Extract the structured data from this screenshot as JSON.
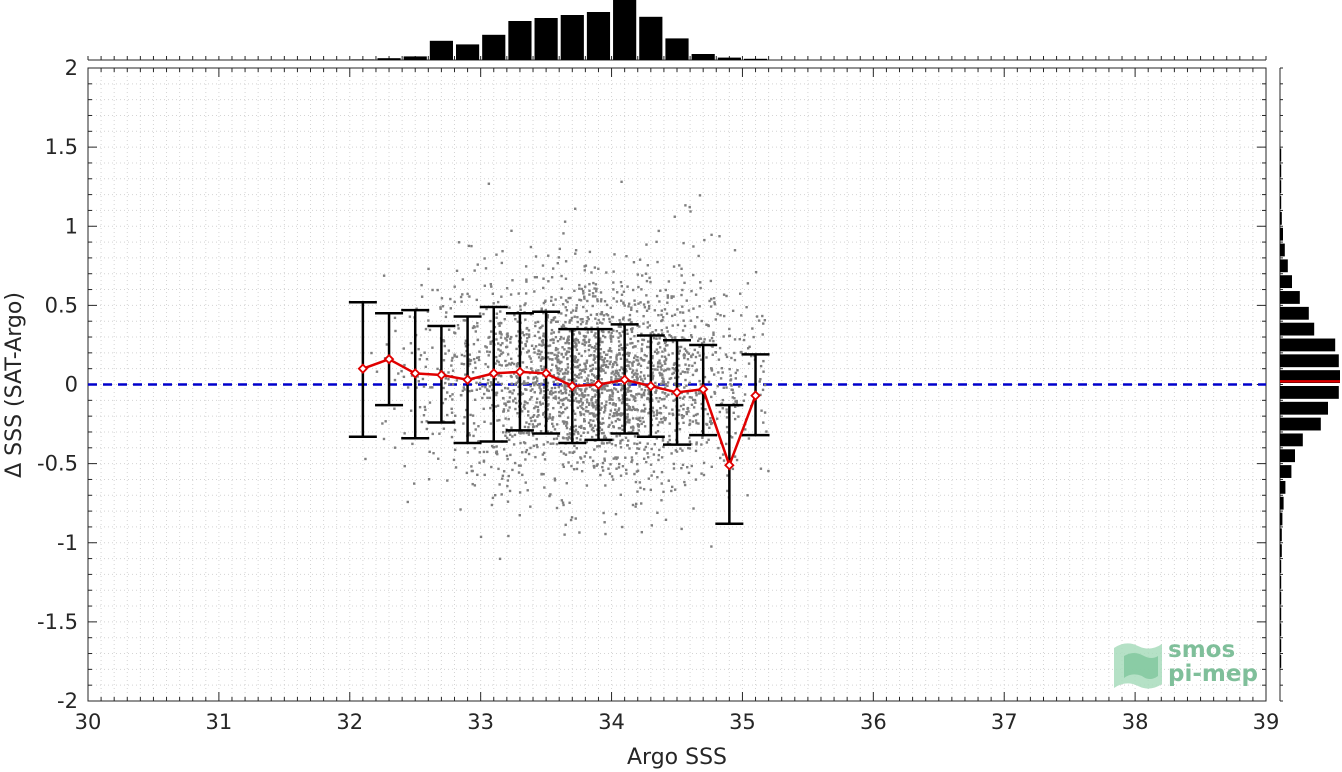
{
  "chart_data": {
    "type": "scatter",
    "title": "",
    "xlabel": "Argo SSS",
    "ylabel": "Δ SSS (SAT-Argo)",
    "xlim": [
      30,
      39
    ],
    "ylim": [
      -2,
      2
    ],
    "xticks": [
      "30",
      "31",
      "32",
      "33",
      "34",
      "35",
      "36",
      "37",
      "38",
      "39"
    ],
    "yticks": [
      "-2",
      "-1.5",
      "-1",
      "-0.5",
      "0",
      "0.5",
      "1",
      "1.5",
      "2"
    ],
    "grid": true,
    "zero_line": {
      "y": 0,
      "color": "#0000cc",
      "style": "dashed"
    },
    "scatter": {
      "color": "#808080",
      "center_x": 33.85,
      "spread_x": 0.62,
      "center_y": 0.02,
      "spread_y": 0.28,
      "xmin": 32.1,
      "xmax": 35.2
    },
    "binned_mean": {
      "color": "#e00000",
      "x": [
        32.1,
        32.3,
        32.5,
        32.7,
        32.9,
        33.1,
        33.3,
        33.5,
        33.7,
        33.9,
        34.1,
        34.3,
        34.5,
        34.7,
        34.9,
        35.1
      ],
      "mean": [
        0.1,
        0.16,
        0.07,
        0.06,
        0.03,
        0.07,
        0.08,
        0.07,
        -0.01,
        0.0,
        0.03,
        -0.01,
        -0.05,
        -0.03,
        -0.51,
        -0.07
      ],
      "upper": [
        0.52,
        0.45,
        0.47,
        0.37,
        0.43,
        0.49,
        0.45,
        0.46,
        0.35,
        0.35,
        0.38,
        0.31,
        0.28,
        0.25,
        -0.13,
        0.19
      ],
      "lower": [
        -0.33,
        -0.13,
        -0.34,
        -0.24,
        -0.37,
        -0.36,
        -0.29,
        -0.31,
        -0.37,
        -0.35,
        -0.31,
        -0.33,
        -0.38,
        -0.32,
        -0.88,
        -0.32
      ]
    },
    "top_histogram": {
      "color": "#000000",
      "bins_x": [
        32.0,
        32.2,
        32.4,
        32.6,
        32.8,
        33.0,
        33.2,
        33.4,
        33.6,
        33.8,
        34.0,
        34.2,
        34.4,
        34.6,
        34.8,
        35.0
      ],
      "heights": [
        0.01,
        0.03,
        0.06,
        0.32,
        0.26,
        0.42,
        0.65,
        0.7,
        0.75,
        0.8,
        1.0,
        0.72,
        0.36,
        0.1,
        0.04,
        0.02
      ]
    },
    "right_histogram": {
      "color": "#000000",
      "median_color": "#e00000",
      "median_y": 0.02,
      "bins_y": [
        1.45,
        1.35,
        1.25,
        1.15,
        1.05,
        0.95,
        0.85,
        0.75,
        0.65,
        0.55,
        0.45,
        0.35,
        0.25,
        0.15,
        0.05,
        -0.05,
        -0.15,
        -0.25,
        -0.35,
        -0.45,
        -0.55,
        -0.65,
        -0.75,
        -0.85,
        -0.95,
        -1.05,
        -1.15,
        -1.25,
        -1.35,
        -1.45,
        -1.55,
        -1.65,
        -1.75
      ],
      "widths": [
        0.02,
        0.02,
        0.02,
        0.02,
        0.03,
        0.05,
        0.08,
        0.13,
        0.2,
        0.33,
        0.48,
        0.57,
        0.92,
        0.98,
        1.0,
        0.98,
        0.8,
        0.68,
        0.38,
        0.25,
        0.19,
        0.09,
        0.06,
        0.04,
        0.03,
        0.03,
        0.02,
        0.02,
        0.02,
        0.02,
        0.02,
        0.02,
        0.02
      ]
    }
  },
  "logo": {
    "line1": "smos",
    "line2": "pi-mep"
  }
}
